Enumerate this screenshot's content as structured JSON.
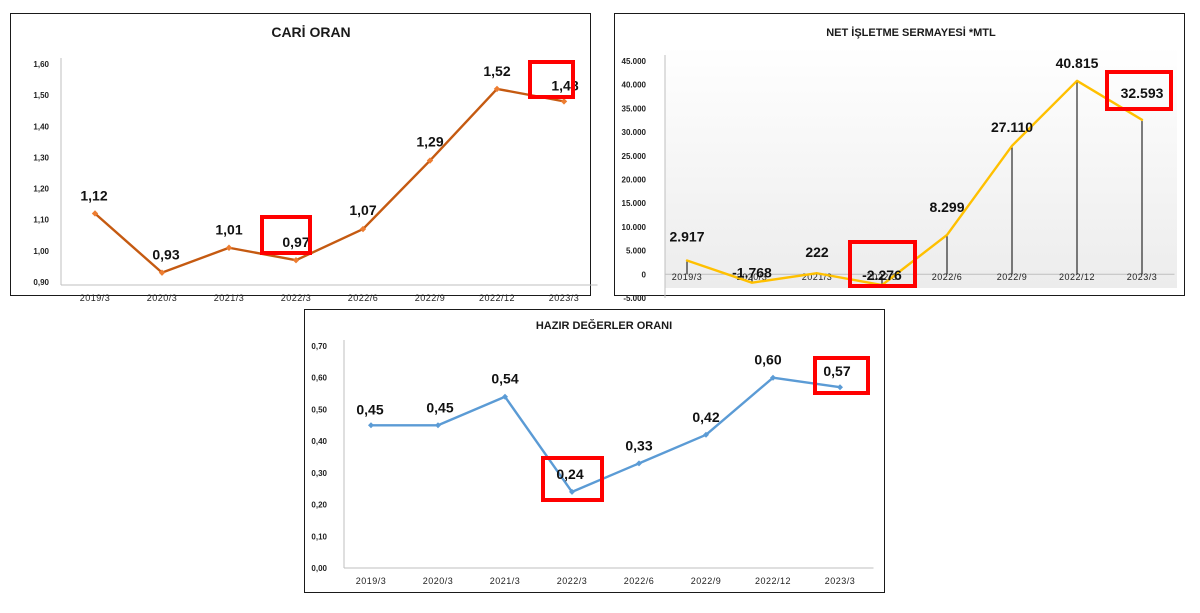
{
  "colors": {
    "highlight": "#ff0000",
    "axis": "#bfbfbf",
    "drop_line": "#000000"
  },
  "chart_data": [
    {
      "type": "line",
      "title": "CARİ ORAN",
      "categories": [
        "2019/3",
        "2020/3",
        "2021/3",
        "2022/3",
        "2022/6",
        "2022/9",
        "2022/12",
        "2023/3"
      ],
      "values": [
        1.12,
        0.93,
        1.01,
        0.97,
        1.07,
        1.29,
        1.52,
        1.48
      ],
      "data_labels": [
        "1,12",
        "0,93",
        "1,01",
        "0,97",
        "1,07",
        "1,29",
        "1,52",
        "1,48"
      ],
      "highlighted": [
        "2022/3",
        "2023/3"
      ],
      "yticks": [
        "0,90",
        "1,00",
        "1,10",
        "1,20",
        "1,30",
        "1,40",
        "1,50",
        "1,60"
      ],
      "ylim": [
        0.9,
        1.6
      ],
      "color": "#c55a11",
      "marker_color": "#ed7d31",
      "grid": false
    },
    {
      "type": "line",
      "title": "NET İŞLETME SERMAYESİ *MTL",
      "categories": [
        "2019/3",
        "2020/3",
        "2021/3",
        "2022/3",
        "2022/6",
        "2022/9",
        "2022/12",
        "2023/3"
      ],
      "values": [
        2917,
        -1768,
        222,
        -2276,
        8299,
        27110,
        40815,
        32593
      ],
      "data_labels": [
        "2.917",
        "-1.768",
        "222",
        "-2.276",
        "8.299",
        "27.110",
        "40.815",
        "32.593"
      ],
      "highlighted": [
        "2022/3",
        "2023/3"
      ],
      "yticks": [
        "-5.000",
        "0",
        "5.000",
        "10.000",
        "15.000",
        "20.000",
        "25.000",
        "30.000",
        "35.000",
        "40.000",
        "45.000"
      ],
      "ylim": [
        -5000,
        45000
      ],
      "color": "#ffc000",
      "drop_lines": true,
      "grid": false
    },
    {
      "type": "line",
      "title": "HAZIR DEĞERLER ORANI",
      "categories": [
        "2019/3",
        "2020/3",
        "2021/3",
        "2022/3",
        "2022/6",
        "2022/9",
        "2022/12",
        "2023/3"
      ],
      "values": [
        0.45,
        0.45,
        0.54,
        0.24,
        0.33,
        0.42,
        0.6,
        0.57
      ],
      "data_labels": [
        "0,45",
        "0,45",
        "0,54",
        "0,24",
        "0,33",
        "0,42",
        "0,60",
        "0,57"
      ],
      "highlighted": [
        "2022/3",
        "2023/3"
      ],
      "yticks": [
        "0,00",
        "0,10",
        "0,20",
        "0,30",
        "0,40",
        "0,50",
        "0,60",
        "0,70"
      ],
      "ylim": [
        0,
        0.7
      ],
      "color": "#5b9bd5",
      "marker_color": "#5b9bd5",
      "grid": false
    }
  ]
}
